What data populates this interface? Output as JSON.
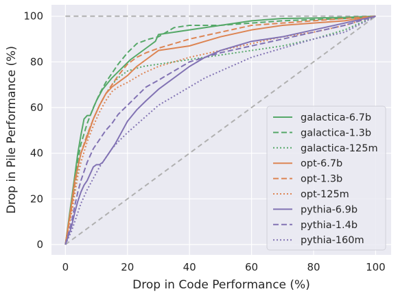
{
  "chart_data": {
    "type": "line",
    "xlabel": "Drop in Code Performance (%)",
    "ylabel": "Drop in Pile Performance (%)",
    "xlim": [
      -4.5,
      105
    ],
    "ylim": [
      -4.5,
      105
    ],
    "xticks": [
      0,
      20,
      40,
      60,
      80,
      100
    ],
    "yticks": [
      0,
      20,
      40,
      60,
      80,
      100
    ],
    "grid": true,
    "background": "#eaeaf2",
    "legend_position": "lower-right",
    "reference_lines": [
      {
        "x": [
          0,
          100
        ],
        "y": [
          100,
          100
        ],
        "color": "#b0b0b0",
        "dash": "dashed"
      },
      {
        "x": [
          0,
          100
        ],
        "y": [
          0,
          100
        ],
        "color": "#b0b0b0",
        "dash": "dashed"
      }
    ],
    "series": [
      {
        "name": "galactica-6.7b",
        "color": "#55a868",
        "dash": "solid",
        "x": [
          0,
          2,
          3,
          4,
          5,
          6,
          7,
          8,
          10,
          12,
          15,
          18,
          21,
          24,
          27,
          29,
          30,
          35,
          40,
          50,
          60,
          70,
          80,
          90,
          100
        ],
        "y": [
          0,
          20,
          30,
          40,
          48,
          55,
          56.5,
          56.5,
          63,
          68,
          73,
          77,
          81,
          84,
          87,
          89,
          92,
          93,
          94,
          96,
          98,
          99,
          99.2,
          99.5,
          100
        ]
      },
      {
        "name": "galactica-1.3b",
        "color": "#55a868",
        "dash": "dashed",
        "x": [
          0,
          2,
          3,
          4,
          5,
          7,
          9,
          11,
          13,
          15,
          17,
          20,
          23,
          27,
          30,
          35,
          40,
          50,
          60,
          70,
          80,
          90,
          100
        ],
        "y": [
          0,
          18,
          28,
          37,
          44,
          53,
          60,
          66,
          71,
          75,
          79,
          84,
          88,
          90,
          91,
          95,
          96,
          96,
          97,
          98,
          98.5,
          99,
          100
        ]
      },
      {
        "name": "galactica-125m",
        "color": "#55a868",
        "dash": "dotted",
        "x": [
          0,
          2,
          3,
          4,
          5,
          7,
          9,
          11,
          13,
          15,
          17,
          20,
          25,
          30,
          35,
          40,
          50,
          60,
          70,
          80,
          90,
          100
        ],
        "y": [
          0,
          15,
          25,
          33,
          40,
          48,
          55,
          61,
          66,
          70,
          73,
          76,
          78,
          79,
          80,
          81,
          83,
          85,
          87,
          90,
          94,
          100
        ]
      },
      {
        "name": "opt-6.7b",
        "color": "#dd8452",
        "dash": "solid",
        "x": [
          0,
          2,
          3,
          4,
          5,
          7,
          9,
          11,
          13,
          15,
          17,
          20,
          23,
          26,
          30,
          35,
          40,
          45,
          50,
          60,
          70,
          80,
          90,
          100
        ],
        "y": [
          0,
          18,
          28,
          34,
          40,
          47,
          55,
          61,
          66,
          69,
          71,
          74,
          78,
          81,
          85,
          86,
          87,
          89,
          91,
          94,
          96,
          97,
          98,
          100
        ]
      },
      {
        "name": "opt-1.3b",
        "color": "#dd8452",
        "dash": "dashed",
        "x": [
          0,
          2,
          3,
          4,
          5,
          7,
          9,
          11,
          13,
          15,
          17,
          20,
          23,
          26,
          30,
          35,
          40,
          50,
          60,
          70,
          80,
          90,
          100
        ],
        "y": [
          0,
          16,
          26,
          34,
          40,
          48,
          55,
          61,
          66,
          70,
          74,
          79,
          82,
          84,
          86,
          88,
          90,
          93,
          96,
          97,
          98,
          99,
          100
        ]
      },
      {
        "name": "opt-125m",
        "color": "#dd8452",
        "dash": "dotted",
        "x": [
          0,
          2,
          3,
          4,
          5,
          7,
          9,
          11,
          13,
          15,
          17,
          20,
          25,
          30,
          35,
          40,
          50,
          60,
          70,
          80,
          90,
          100
        ],
        "y": [
          0,
          14,
          22,
          30,
          36,
          45,
          52,
          58,
          63,
          67,
          69,
          71,
          75,
          78,
          80,
          82,
          85,
          88,
          91,
          93,
          96,
          100
        ]
      },
      {
        "name": "pythia-6.9b",
        "color": "#8172b3",
        "dash": "solid",
        "x": [
          0,
          2,
          3,
          4,
          5,
          6,
          7,
          8,
          9,
          10,
          11,
          12,
          14,
          16,
          18,
          20,
          23,
          26,
          30,
          35,
          40,
          45,
          50,
          55,
          60,
          70,
          80,
          90,
          100
        ],
        "y": [
          0,
          8,
          14,
          19,
          23,
          26,
          28,
          31,
          34,
          35,
          35,
          36,
          40,
          44,
          49,
          54,
          59,
          63,
          68,
          73,
          78,
          82,
          85,
          87,
          89,
          91,
          94,
          97,
          100
        ]
      },
      {
        "name": "pythia-1.4b",
        "color": "#8172b3",
        "dash": "dashed",
        "x": [
          0,
          2,
          3,
          4,
          5,
          7,
          9,
          11,
          13,
          15,
          17,
          20,
          23,
          26,
          30,
          35,
          40,
          50,
          60,
          70,
          80,
          90,
          100
        ],
        "y": [
          0,
          10,
          17,
          23,
          28,
          36,
          42,
          46,
          50,
          53,
          57,
          61,
          65,
          69,
          72,
          76,
          80,
          84,
          87,
          90,
          93,
          96,
          100
        ]
      },
      {
        "name": "pythia-160m",
        "color": "#8172b3",
        "dash": "dotted",
        "x": [
          0,
          2,
          3,
          4,
          5,
          7,
          9,
          11,
          13,
          15,
          17,
          20,
          25,
          30,
          35,
          40,
          45,
          50,
          60,
          70,
          80,
          90,
          100
        ],
        "y": [
          0,
          6,
          10,
          14,
          18,
          24,
          29,
          34,
          38,
          42,
          45,
          49,
          55,
          61,
          65,
          69,
          73,
          76,
          82,
          86,
          90,
          93,
          100
        ]
      }
    ]
  }
}
